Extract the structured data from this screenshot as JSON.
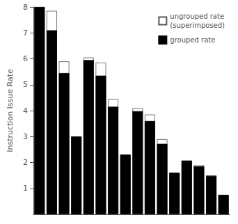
{
  "chart_data": {
    "type": "bar",
    "ylabel": "Instruction Issue Rate",
    "categories": [
      null,
      null,
      null,
      null,
      null,
      null,
      null,
      null,
      null,
      null,
      null,
      null,
      null,
      null,
      null,
      null
    ],
    "series": [
      {
        "name": "ungrouped rate\n(superimposed)",
        "color": "#ffffff",
        "values": [
          8.0,
          7.85,
          5.9,
          3.0,
          6.05,
          5.85,
          4.45,
          2.3,
          4.1,
          3.85,
          2.9,
          1.6,
          2.07,
          1.9,
          1.5,
          0.75
        ]
      },
      {
        "name": "grouped rate",
        "color": "#000000",
        "values": [
          8.0,
          7.1,
          5.45,
          3.0,
          5.95,
          5.35,
          4.15,
          2.3,
          3.98,
          3.6,
          2.72,
          1.6,
          2.07,
          1.85,
          1.48,
          0.75
        ]
      }
    ],
    "ylim": [
      0,
      8
    ],
    "yticks": [
      1,
      2,
      3,
      4,
      5,
      6,
      7,
      8
    ],
    "grid": false,
    "legend": "upper right",
    "tick_labels": "y"
  }
}
